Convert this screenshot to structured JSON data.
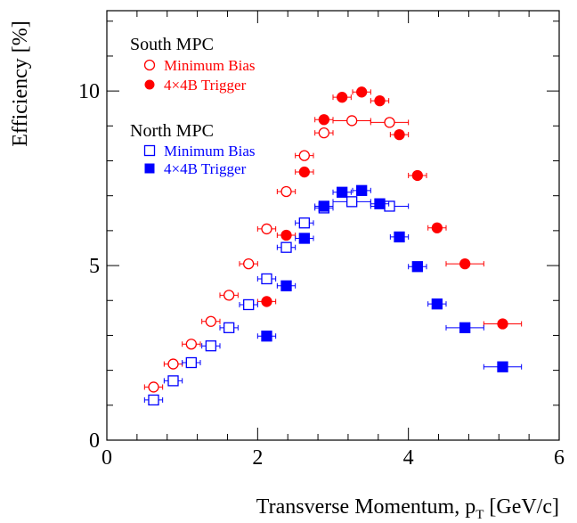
{
  "chart_data": {
    "type": "scatter",
    "xlabel_main": "Transverse Momentum, p",
    "xlabel_sub": "T",
    "xlabel_unit": " [GeV/c]",
    "ylabel": "Efficiency [%]",
    "xlim": [
      0,
      6
    ],
    "ylim": [
      0,
      12.3
    ],
    "x_ticks": [
      0,
      2,
      4,
      6
    ],
    "y_ticks": [
      0,
      5,
      10
    ],
    "grid": false,
    "legend_groups": [
      {
        "heading": "South MPC",
        "entries": [
          "Minimum Bias",
          "4×4B Trigger"
        ]
      },
      {
        "heading": "North MPC",
        "entries": [
          "Minimum Bias",
          "4×4B Trigger"
        ]
      }
    ],
    "series": [
      {
        "name": "Minimum Bias",
        "group": "South MPC",
        "marker": "circle-open",
        "color": "#ff0000",
        "points": [
          {
            "x": 0.62,
            "y": 1.52,
            "xerr": 0.12
          },
          {
            "x": 0.88,
            "y": 2.18,
            "xerr": 0.12
          },
          {
            "x": 1.12,
            "y": 2.75,
            "xerr": 0.12
          },
          {
            "x": 1.38,
            "y": 3.4,
            "xerr": 0.12
          },
          {
            "x": 1.62,
            "y": 4.15,
            "xerr": 0.12
          },
          {
            "x": 1.88,
            "y": 5.05,
            "xerr": 0.12
          },
          {
            "x": 2.12,
            "y": 6.05,
            "xerr": 0.12
          },
          {
            "x": 2.38,
            "y": 7.12,
            "xerr": 0.12
          },
          {
            "x": 2.62,
            "y": 8.15,
            "xerr": 0.12
          },
          {
            "x": 2.88,
            "y": 8.8,
            "xerr": 0.12
          },
          {
            "x": 3.25,
            "y": 9.15,
            "xerr": 0.25
          },
          {
            "x": 3.75,
            "y": 9.1,
            "xerr": 0.25
          }
        ]
      },
      {
        "name": "4×4B Trigger",
        "group": "South MPC",
        "marker": "circle-filled",
        "color": "#ff0000",
        "points": [
          {
            "x": 2.12,
            "y": 3.97,
            "xerr": 0.12
          },
          {
            "x": 2.38,
            "y": 5.87,
            "xerr": 0.12
          },
          {
            "x": 2.62,
            "y": 7.68,
            "xerr": 0.12
          },
          {
            "x": 2.88,
            "y": 9.18,
            "xerr": 0.12
          },
          {
            "x": 3.12,
            "y": 9.82,
            "xerr": 0.12
          },
          {
            "x": 3.38,
            "y": 9.97,
            "xerr": 0.12
          },
          {
            "x": 3.62,
            "y": 9.72,
            "xerr": 0.12
          },
          {
            "x": 3.88,
            "y": 8.75,
            "xerr": 0.12
          },
          {
            "x": 4.12,
            "y": 7.58,
            "xerr": 0.12
          },
          {
            "x": 4.38,
            "y": 6.08,
            "xerr": 0.12
          },
          {
            "x": 4.75,
            "y": 5.05,
            "xerr": 0.25
          },
          {
            "x": 5.25,
            "y": 3.33,
            "xerr": 0.25
          }
        ]
      },
      {
        "name": "Minimum Bias",
        "group": "North MPC",
        "marker": "square-open",
        "color": "#0000ff",
        "points": [
          {
            "x": 0.62,
            "y": 1.15,
            "xerr": 0.12
          },
          {
            "x": 0.88,
            "y": 1.7,
            "xerr": 0.12
          },
          {
            "x": 1.12,
            "y": 2.22,
            "xerr": 0.12
          },
          {
            "x": 1.38,
            "y": 2.7,
            "xerr": 0.12
          },
          {
            "x": 1.62,
            "y": 3.22,
            "xerr": 0.12
          },
          {
            "x": 1.88,
            "y": 3.88,
            "xerr": 0.12
          },
          {
            "x": 2.12,
            "y": 4.62,
            "xerr": 0.12
          },
          {
            "x": 2.38,
            "y": 5.52,
            "xerr": 0.12
          },
          {
            "x": 2.62,
            "y": 6.22,
            "xerr": 0.12
          },
          {
            "x": 2.88,
            "y": 6.65,
            "xerr": 0.12
          },
          {
            "x": 3.25,
            "y": 6.83,
            "xerr": 0.25
          },
          {
            "x": 3.75,
            "y": 6.7,
            "xerr": 0.25
          }
        ]
      },
      {
        "name": "4×4B Trigger",
        "group": "North MPC",
        "marker": "square-filled",
        "color": "#0000ff",
        "points": [
          {
            "x": 2.12,
            "y": 2.98,
            "xerr": 0.12
          },
          {
            "x": 2.38,
            "y": 4.42,
            "xerr": 0.12
          },
          {
            "x": 2.62,
            "y": 5.78,
            "xerr": 0.12
          },
          {
            "x": 2.88,
            "y": 6.7,
            "xerr": 0.12
          },
          {
            "x": 3.12,
            "y": 7.1,
            "xerr": 0.12
          },
          {
            "x": 3.38,
            "y": 7.15,
            "xerr": 0.12
          },
          {
            "x": 3.62,
            "y": 6.77,
            "xerr": 0.12
          },
          {
            "x": 3.88,
            "y": 5.82,
            "xerr": 0.12
          },
          {
            "x": 4.12,
            "y": 4.97,
            "xerr": 0.12
          },
          {
            "x": 4.38,
            "y": 3.9,
            "xerr": 0.12
          },
          {
            "x": 4.75,
            "y": 3.22,
            "xerr": 0.25
          },
          {
            "x": 5.25,
            "y": 2.1,
            "xerr": 0.25
          }
        ]
      }
    ]
  }
}
